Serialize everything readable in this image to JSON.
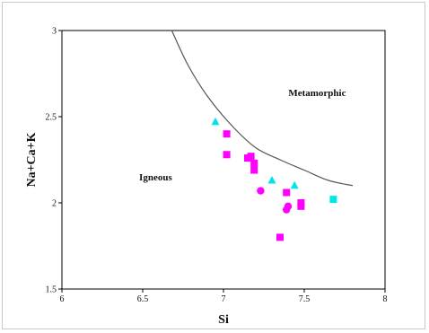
{
  "chart_data": {
    "type": "scatter",
    "title": "",
    "xlabel": "Si",
    "ylabel": "Na+Ca+K",
    "xlim": [
      6,
      8
    ],
    "ylim": [
      1.5,
      3
    ],
    "x_ticks": [
      "6",
      "6.5",
      "7",
      "7.5",
      "8"
    ],
    "y_ticks": [
      "1.5",
      "2",
      "2.5",
      "3"
    ],
    "grid": false,
    "legend": "none",
    "region_labels": [
      {
        "text": "Metamorphic",
        "x": 7.58,
        "y": 2.62
      },
      {
        "text": "Igneous",
        "x": 6.58,
        "y": 2.13
      }
    ],
    "boundary_curve": {
      "color": "#555555",
      "points": [
        [
          6.68,
          3.0
        ],
        [
          6.78,
          2.8
        ],
        [
          6.9,
          2.62
        ],
        [
          7.05,
          2.45
        ],
        [
          7.2,
          2.32
        ],
        [
          7.35,
          2.25
        ],
        [
          7.5,
          2.19
        ],
        [
          7.65,
          2.13
        ],
        [
          7.8,
          2.1
        ]
      ]
    },
    "series": [
      {
        "marker": "square",
        "color": "#ff00ff",
        "points": [
          [
            7.02,
            2.4
          ],
          [
            7.02,
            2.28
          ],
          [
            7.15,
            2.26
          ],
          [
            7.17,
            2.27
          ],
          [
            7.19,
            2.23
          ],
          [
            7.19,
            2.19
          ],
          [
            7.39,
            2.06
          ],
          [
            7.35,
            1.8
          ],
          [
            7.48,
            2.0
          ],
          [
            7.48,
            1.98
          ]
        ]
      },
      {
        "marker": "circle",
        "color": "#ff00ff",
        "points": [
          [
            7.23,
            2.07
          ],
          [
            7.39,
            1.96
          ],
          [
            7.4,
            1.98
          ]
        ]
      },
      {
        "marker": "triangle",
        "color": "#00e5e5",
        "points": [
          [
            6.95,
            2.47
          ],
          [
            7.3,
            2.13
          ],
          [
            7.44,
            2.1
          ]
        ]
      },
      {
        "marker": "square",
        "color": "#00e5e5",
        "points": [
          [
            7.68,
            2.02
          ]
        ]
      }
    ]
  }
}
